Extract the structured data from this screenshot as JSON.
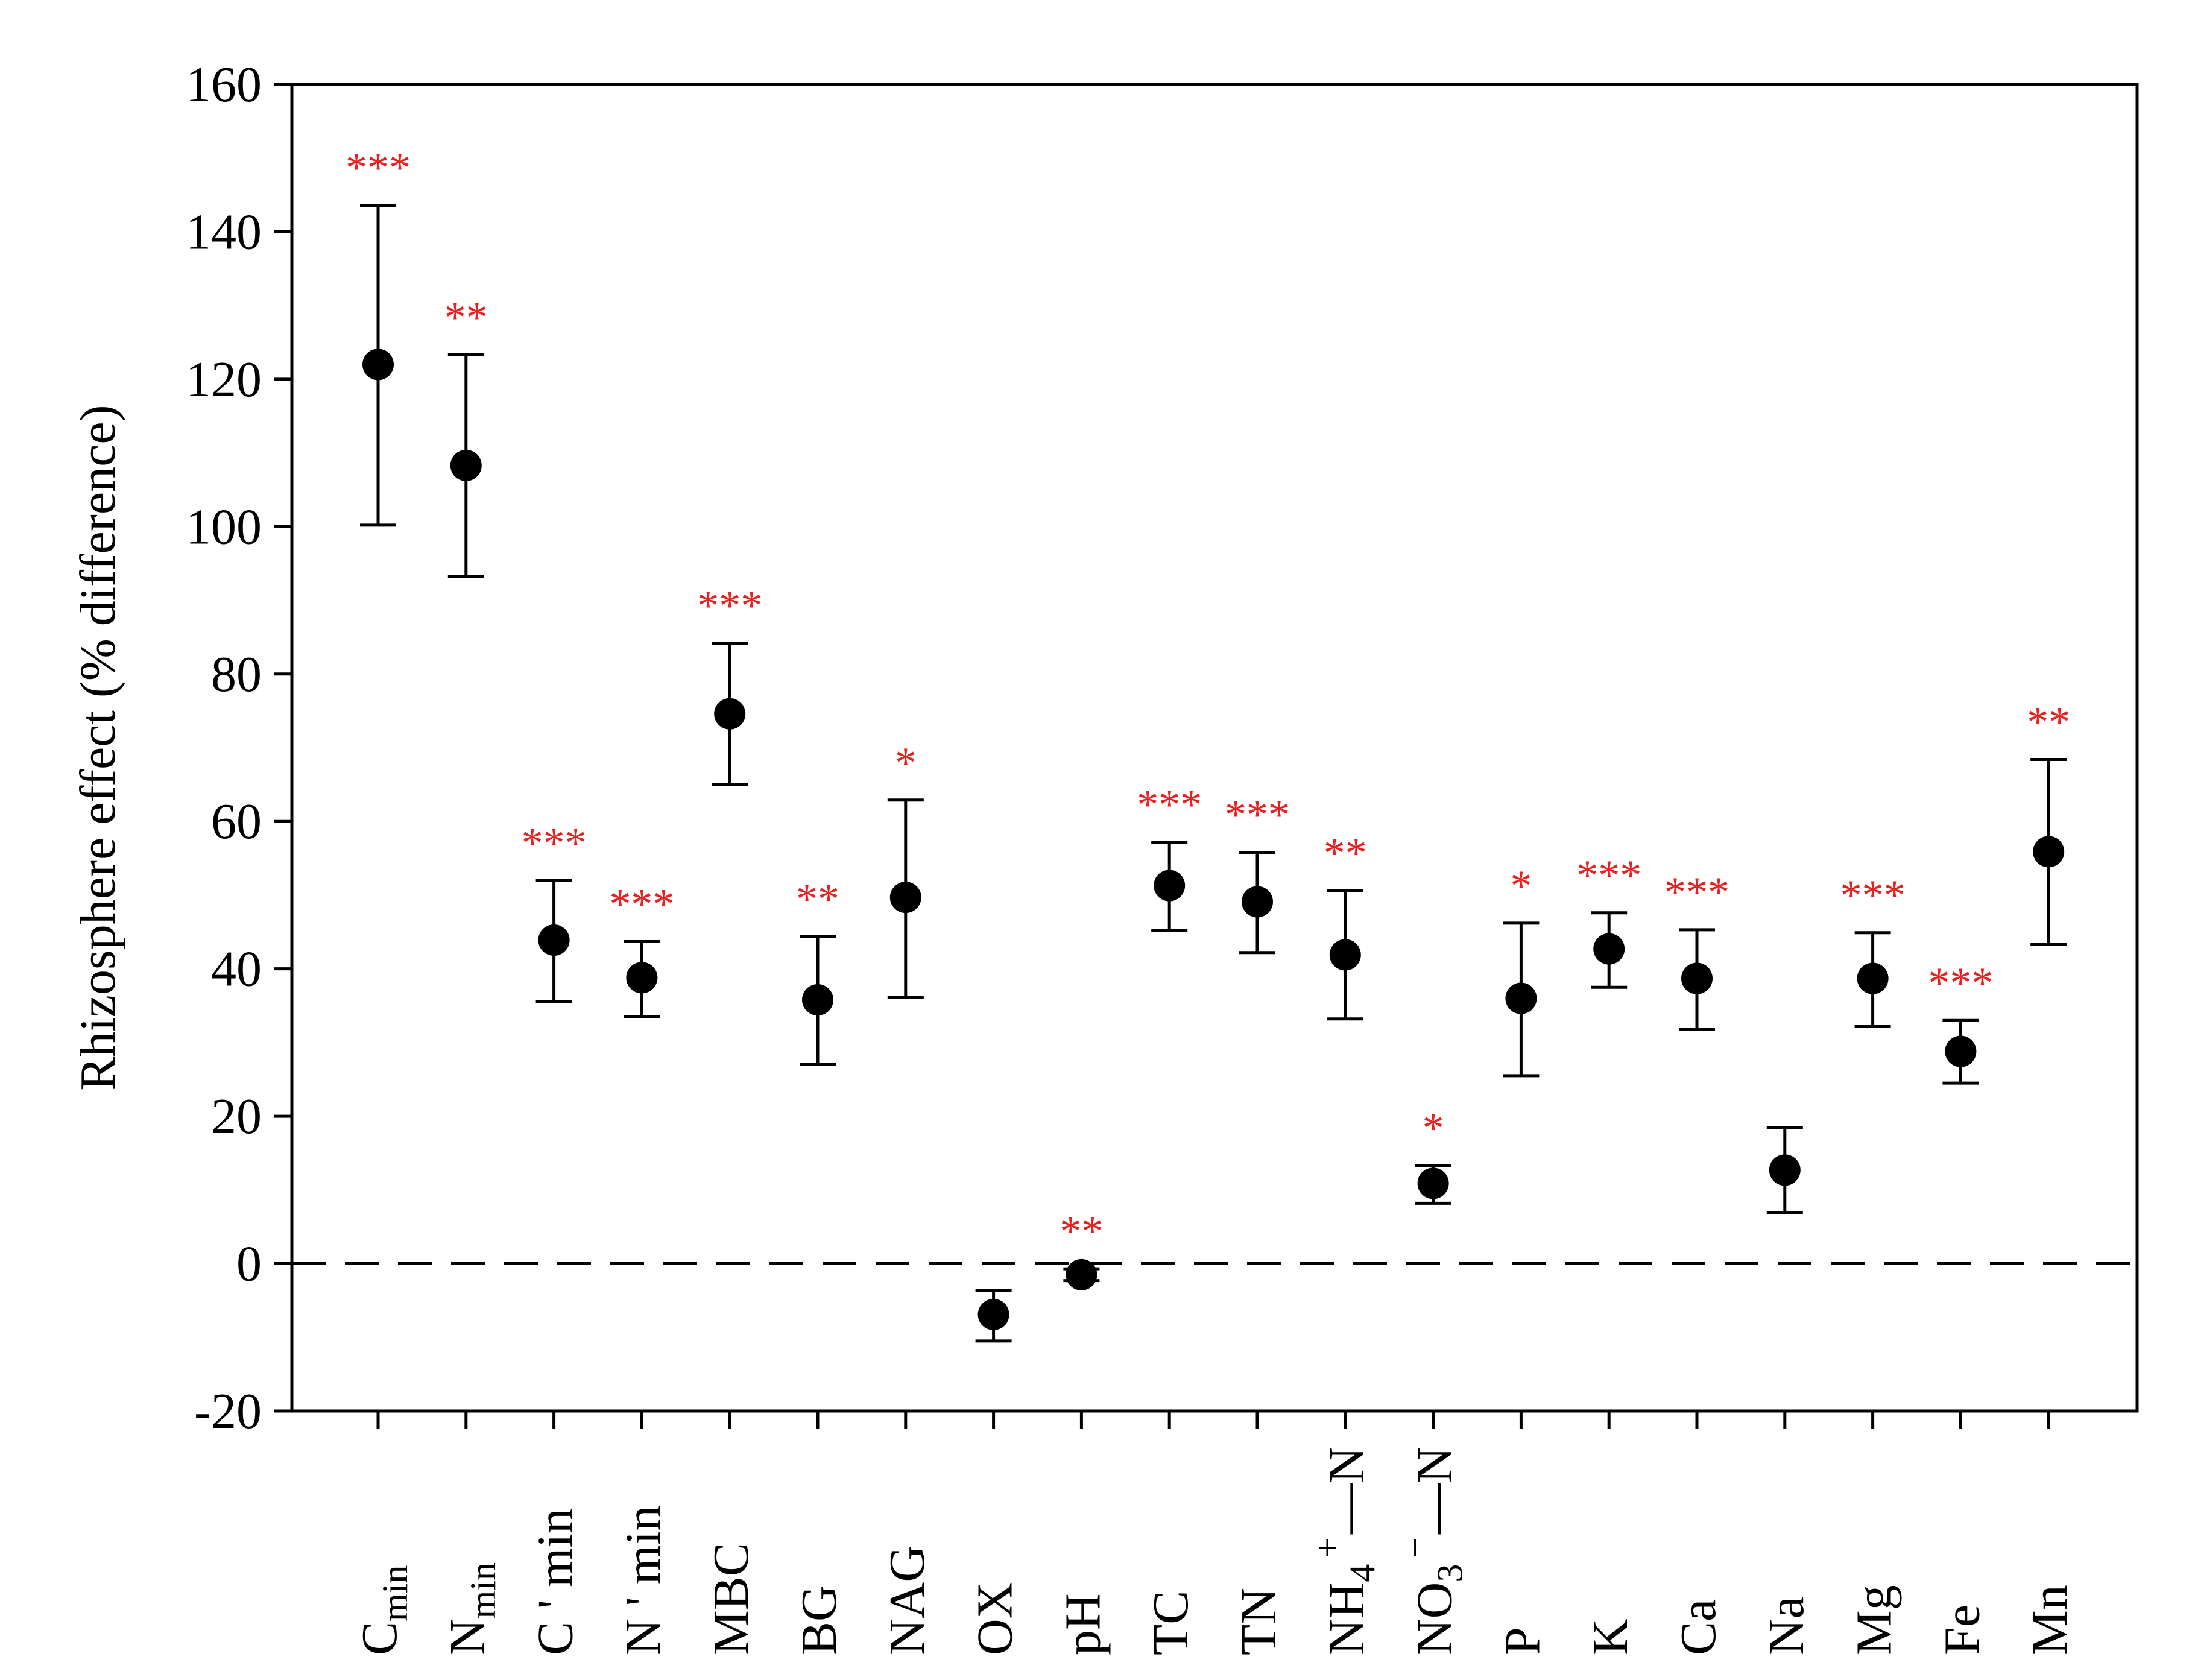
{
  "chart_data": {
    "type": "scatter",
    "title": "",
    "xlabel": "",
    "ylabel": "Rhizosphere effect (% difference)",
    "ylim": [
      -20,
      160
    ],
    "yticks": [
      -20,
      0,
      20,
      40,
      60,
      80,
      100,
      120,
      140,
      160
    ],
    "grid": false,
    "reference_line": {
      "y": 0,
      "style": "dashed"
    },
    "series": [
      {
        "name": "Rhizosphere effect",
        "color": "#000000",
        "points": [
          {
            "category": "Cmin",
            "label": {
              "main": "C",
              "sub": "min"
            },
            "value": 122.0,
            "lower": 100.2,
            "upper": 143.6,
            "sig": "***"
          },
          {
            "category": "Nmin",
            "label": {
              "main": "N",
              "sub": "min"
            },
            "value": 108.3,
            "lower": 93.2,
            "upper": 123.3,
            "sig": "**"
          },
          {
            "category": "C'min",
            "label": {
              "main": "C ' min"
            },
            "value": 43.9,
            "lower": 35.6,
            "upper": 52.0,
            "sig": "***"
          },
          {
            "category": "N'min",
            "label": {
              "main": "N ' min"
            },
            "value": 38.8,
            "lower": 33.5,
            "upper": 43.7,
            "sig": "***"
          },
          {
            "category": "MBC",
            "label": {
              "main": "MBC"
            },
            "value": 74.6,
            "lower": 65.0,
            "upper": 84.2,
            "sig": "***"
          },
          {
            "category": "BG",
            "label": {
              "main": "BG"
            },
            "value": 35.8,
            "lower": 27.0,
            "upper": 44.4,
            "sig": "**"
          },
          {
            "category": "NAG",
            "label": {
              "main": "NAG"
            },
            "value": 49.7,
            "lower": 36.1,
            "upper": 62.9,
            "sig": "*"
          },
          {
            "category": "OX",
            "label": {
              "main": "OX"
            },
            "value": -6.9,
            "lower": -10.5,
            "upper": -3.6,
            "sig": ""
          },
          {
            "category": "pH",
            "label": {
              "main": "pH"
            },
            "value": -1.5,
            "lower": -2.3,
            "upper": -0.7,
            "sig": "**"
          },
          {
            "category": "TC",
            "label": {
              "main": "TC"
            },
            "value": 51.3,
            "lower": 45.2,
            "upper": 57.2,
            "sig": "***"
          },
          {
            "category": "TN",
            "label": {
              "main": "TN"
            },
            "value": 49.1,
            "lower": 42.2,
            "upper": 55.8,
            "sig": "***"
          },
          {
            "category": "NH4+-N",
            "label": {
              "main": "NH",
              "sub": "4",
              "sup": "+",
              "tail": "—N"
            },
            "value": 41.9,
            "lower": 33.2,
            "upper": 50.6,
            "sig": "**"
          },
          {
            "category": "NO3--N",
            "label": {
              "main": "NO",
              "sub": "3",
              "sup": "−",
              "tail": "—N"
            },
            "value": 10.9,
            "lower": 8.2,
            "upper": 13.3,
            "sig": "*"
          },
          {
            "category": "P",
            "label": {
              "main": "P"
            },
            "value": 36.0,
            "lower": 25.5,
            "upper": 46.2,
            "sig": "*"
          },
          {
            "category": "K",
            "label": {
              "main": "K"
            },
            "value": 42.7,
            "lower": 37.5,
            "upper": 47.6,
            "sig": "***"
          },
          {
            "category": "Ca",
            "label": {
              "main": "Ca"
            },
            "value": 38.7,
            "lower": 31.8,
            "upper": 45.3,
            "sig": "***"
          },
          {
            "category": "Na",
            "label": {
              "main": "Na"
            },
            "value": 12.7,
            "lower": 6.9,
            "upper": 18.5,
            "sig": ""
          },
          {
            "category": "Mg",
            "label": {
              "main": "Mg"
            },
            "value": 38.7,
            "lower": 32.2,
            "upper": 44.9,
            "sig": "***"
          },
          {
            "category": "Fe",
            "label": {
              "main": "Fe"
            },
            "value": 28.8,
            "lower": 24.5,
            "upper": 33.0,
            "sig": "***"
          },
          {
            "category": "Mn",
            "label": {
              "main": "Mn"
            },
            "value": 55.9,
            "lower": 43.3,
            "upper": 68.4,
            "sig": "**"
          }
        ]
      }
    ],
    "significance_color": "#e8201f"
  }
}
